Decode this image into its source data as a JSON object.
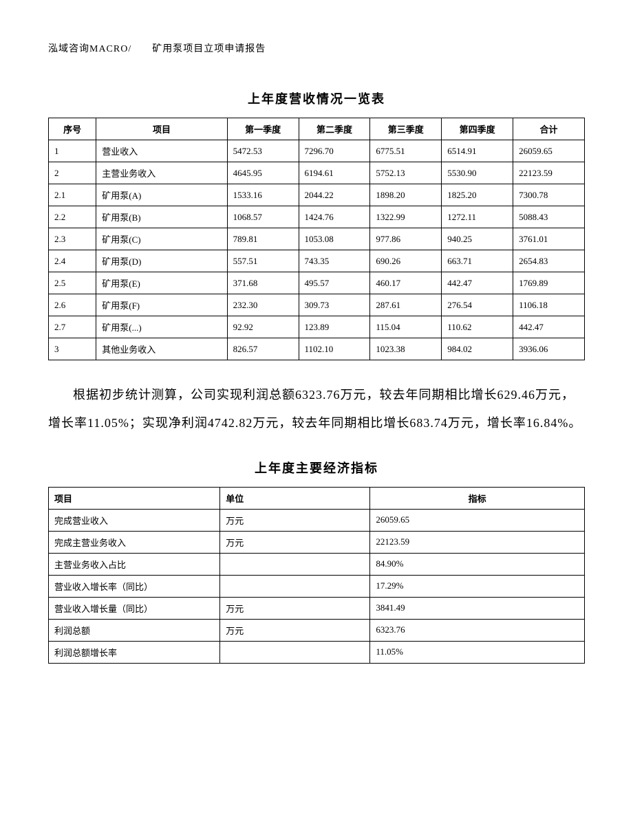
{
  "header": "泓域咨询MACRO/　　矿用泵项目立项申请报告",
  "table1": {
    "title": "上年度营收情况一览表",
    "columns": [
      "序号",
      "项目",
      "第一季度",
      "第二季度",
      "第三季度",
      "第四季度",
      "合计"
    ],
    "rows": [
      [
        "1",
        "营业收入",
        "5472.53",
        "7296.70",
        "6775.51",
        "6514.91",
        "26059.65"
      ],
      [
        "2",
        "主营业务收入",
        "4645.95",
        "6194.61",
        "5752.13",
        "5530.90",
        "22123.59"
      ],
      [
        "2.1",
        "矿用泵(A)",
        "1533.16",
        "2044.22",
        "1898.20",
        "1825.20",
        "7300.78"
      ],
      [
        "2.2",
        "矿用泵(B)",
        "1068.57",
        "1424.76",
        "1322.99",
        "1272.11",
        "5088.43"
      ],
      [
        "2.3",
        "矿用泵(C)",
        "789.81",
        "1053.08",
        "977.86",
        "940.25",
        "3761.01"
      ],
      [
        "2.4",
        "矿用泵(D)",
        "557.51",
        "743.35",
        "690.26",
        "663.71",
        "2654.83"
      ],
      [
        "2.5",
        "矿用泵(E)",
        "371.68",
        "495.57",
        "460.17",
        "442.47",
        "1769.89"
      ],
      [
        "2.6",
        "矿用泵(F)",
        "232.30",
        "309.73",
        "287.61",
        "276.54",
        "1106.18"
      ],
      [
        "2.7",
        "矿用泵(...)",
        "92.92",
        "123.89",
        "115.04",
        "110.62",
        "442.47"
      ],
      [
        "3",
        "其他业务收入",
        "826.57",
        "1102.10",
        "1023.38",
        "984.02",
        "3936.06"
      ]
    ]
  },
  "paragraph": "根据初步统计测算，公司实现利润总额6323.76万元，较去年同期相比增长629.46万元，增长率11.05%；实现净利润4742.82万元，较去年同期相比增长683.74万元，增长率16.84%。",
  "table2": {
    "title": "上年度主要经济指标",
    "columns": [
      "项目",
      "单位",
      "指标"
    ],
    "rows": [
      [
        "完成营业收入",
        "万元",
        "26059.65"
      ],
      [
        "完成主营业务收入",
        "万元",
        "22123.59"
      ],
      [
        "主营业务收入占比",
        "",
        "84.90%"
      ],
      [
        "营业收入增长率（同比）",
        "",
        "17.29%"
      ],
      [
        "营业收入增长量（同比）",
        "万元",
        "3841.49"
      ],
      [
        "利润总额",
        "万元",
        "6323.76"
      ],
      [
        "利润总额增长率",
        "",
        "11.05%"
      ]
    ]
  },
  "styles": {
    "background_color": "#ffffff",
    "text_color": "#000000",
    "border_color": "#000000",
    "body_fontsize": 18,
    "table_fontsize": 13,
    "title_fontsize": 18,
    "header_fontsize": 14
  }
}
